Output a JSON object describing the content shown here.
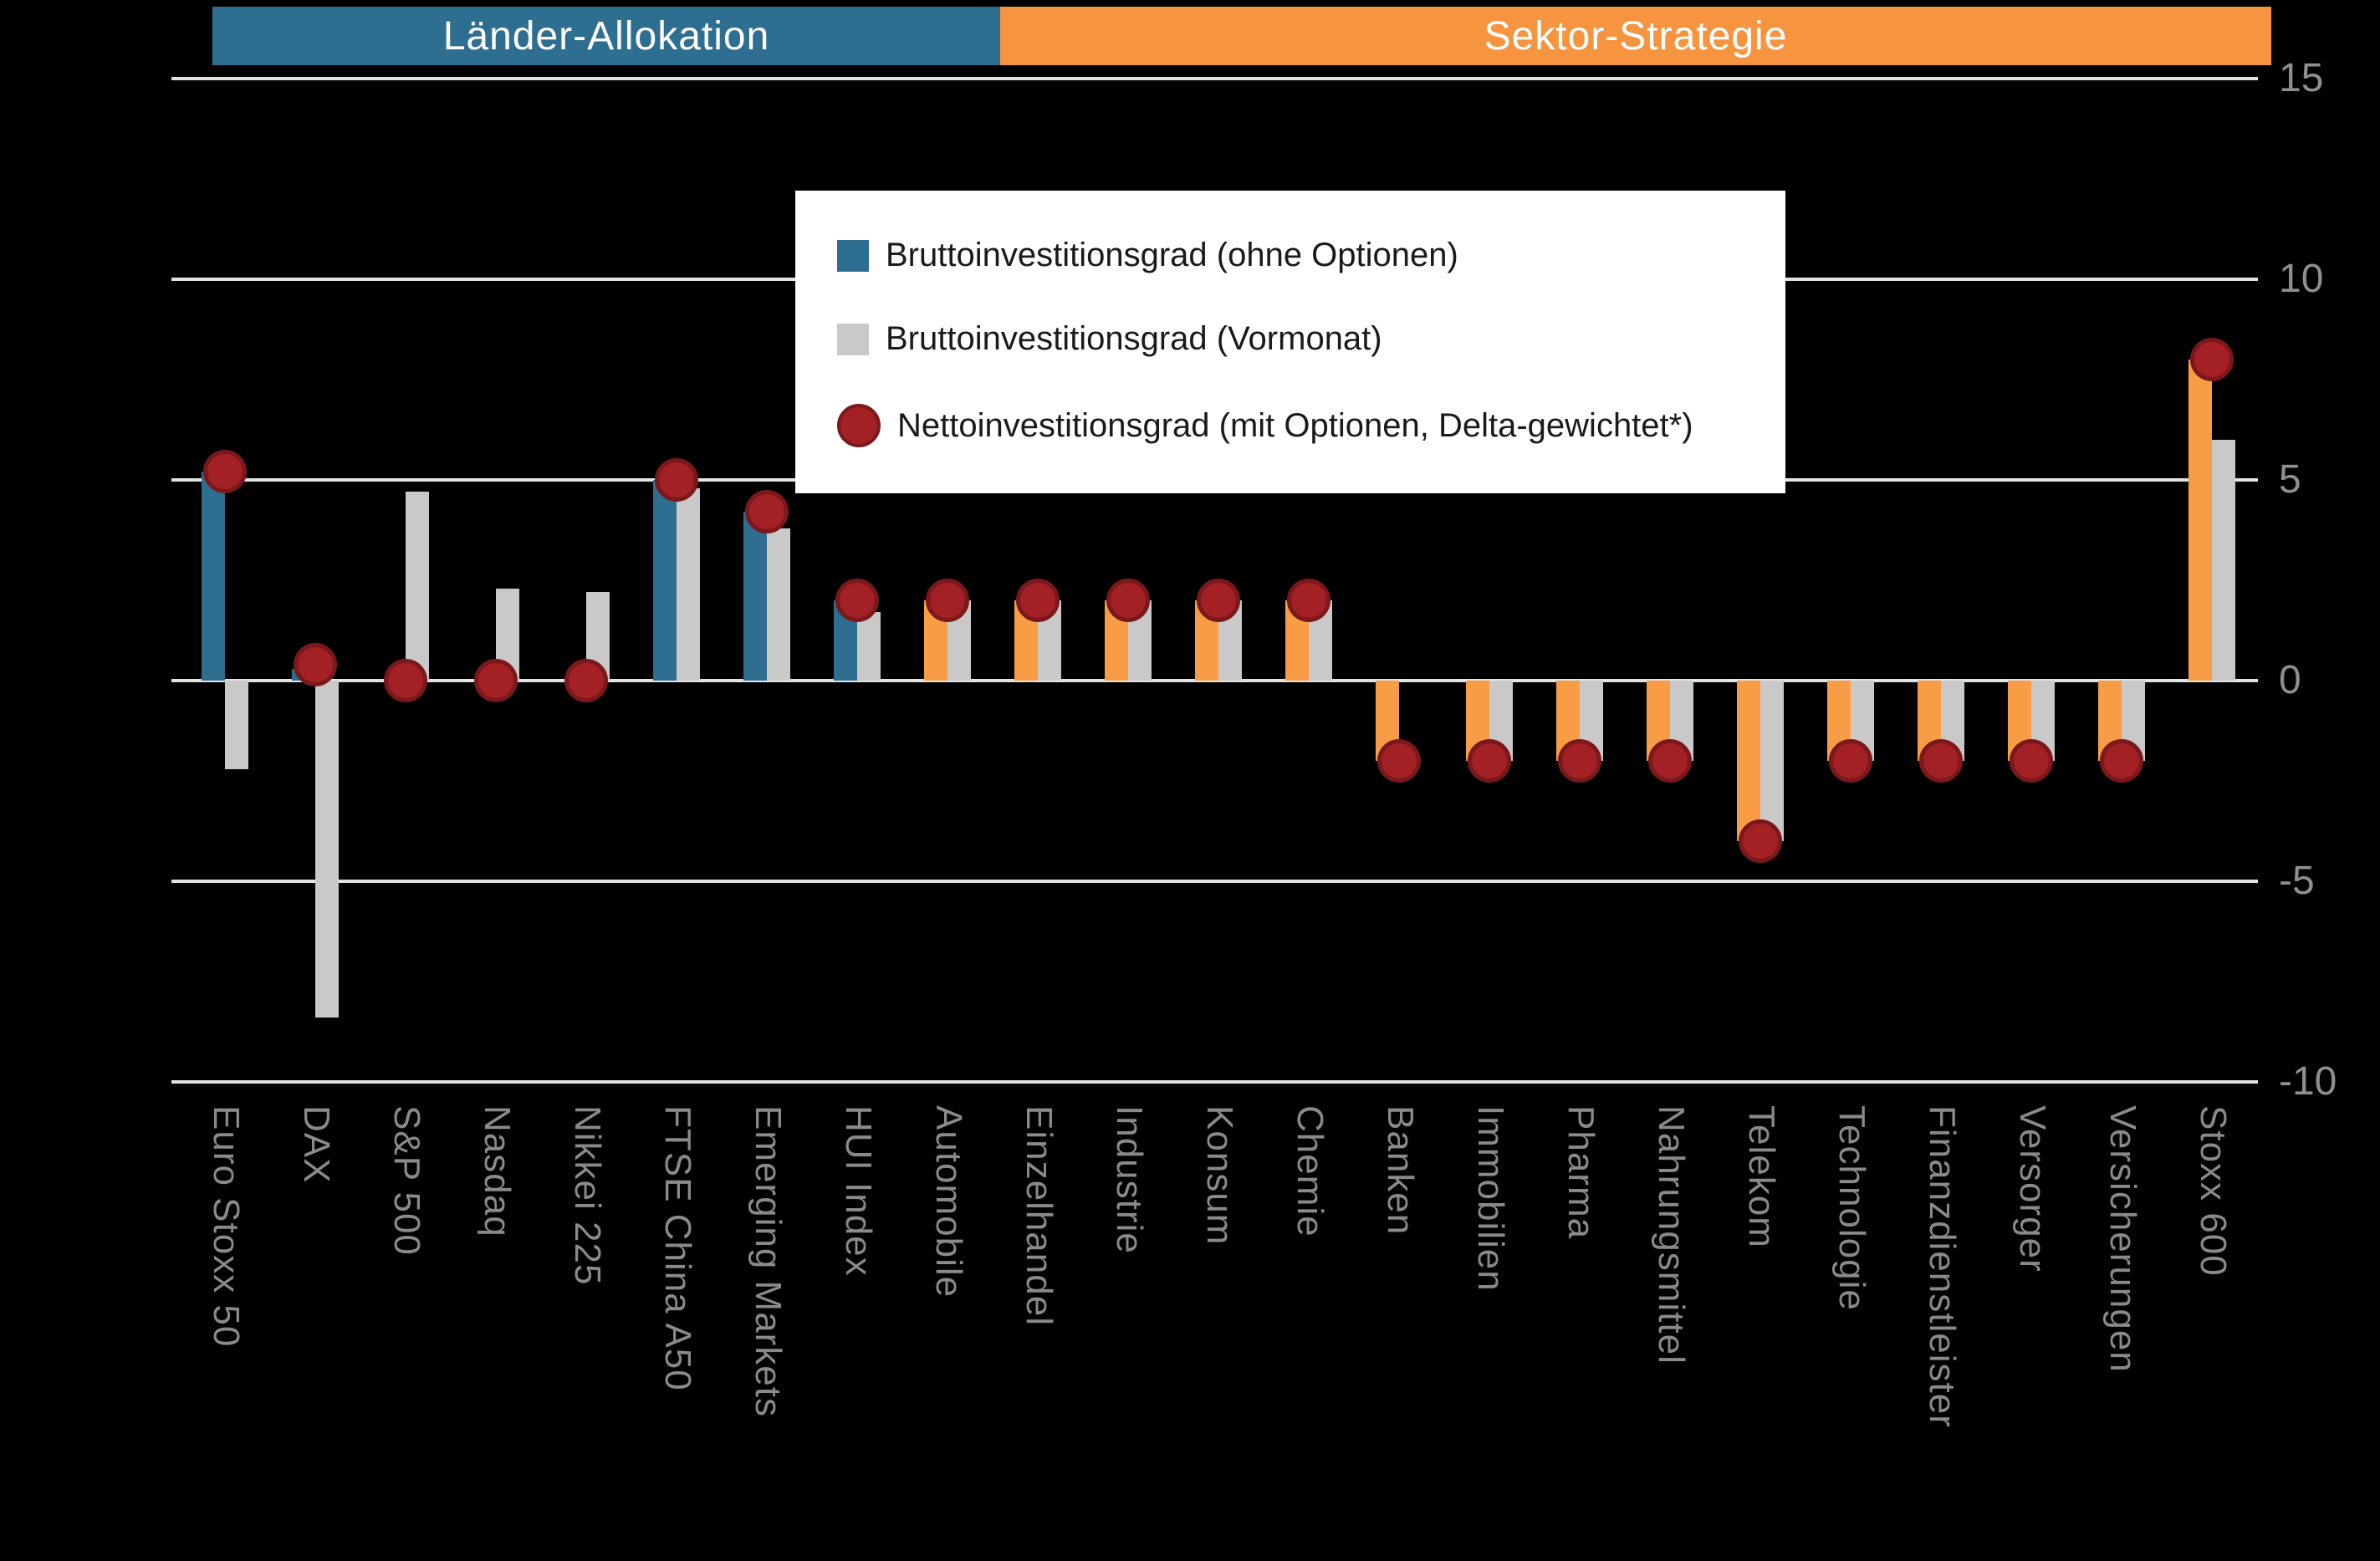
{
  "header": {
    "left_band": "Länder-Allokation",
    "right_band": "Sektor-Strategie"
  },
  "legend": [
    {
      "label": "Bruttoinvestitionsgrad (ohne Optionen)",
      "marker": "square",
      "color": "#2E6E91"
    },
    {
      "label": "Bruttoinvestitionsgrad (Vormonat)",
      "marker": "square",
      "color": "#C9C9C9"
    },
    {
      "label": "Nettoinvestitionsgrad (mit Optionen, Delta-gewichtet*)",
      "marker": "circle",
      "color": "#A32025"
    }
  ],
  "chart_data": {
    "type": "bar",
    "title": "",
    "xlabel": "",
    "ylabel": "",
    "ylim": [
      -10,
      15
    ],
    "yticks": [
      15,
      10,
      5,
      0,
      -5,
      -10
    ],
    "grid": true,
    "legend_position": "top-center",
    "categories": [
      "Euro Stoxx 50",
      "DAX",
      "S&P 500",
      "Nasdaq",
      "Nikkei 225",
      "FTSE China A50",
      "Emerging Markets",
      "HUI Index",
      "Automobile",
      "Einzelhandel",
      "Industrie",
      "Konsum",
      "Chemie",
      "Banken",
      "Immobilien",
      "Pharma",
      "Nahrungsmittel",
      "Telekom",
      "Technologie",
      "Finanzdienstleister",
      "Versorger",
      "Versicherungen",
      "Stoxx 600"
    ],
    "sections": [
      {
        "label": "Länder-Allokation",
        "from": 0,
        "to": 7
      },
      {
        "label": "Sektor-Strategie",
        "from": 8,
        "to": 22
      }
    ],
    "series": [
      {
        "name": "Bruttoinvestitionsgrad (ohne Optionen)",
        "type": "bar",
        "note": "colored blue in Länder section, orange in Sektor section",
        "values": [
          5.2,
          0.3,
          0,
          0,
          0,
          5.0,
          4.2,
          2.0,
          2.0,
          2.0,
          2.0,
          2.0,
          2.0,
          -2.0,
          -2.0,
          -2.0,
          -2.0,
          -4.0,
          -2.0,
          -2.0,
          -2.0,
          -2.0,
          8.0
        ]
      },
      {
        "name": "Bruttoinvestitionsgrad (Vormonat)",
        "type": "bar",
        "values": [
          -2.2,
          -8.4,
          4.7,
          2.3,
          2.2,
          4.8,
          3.8,
          1.7,
          2.0,
          2.0,
          2.0,
          2.0,
          2.0,
          0,
          -2.0,
          -2.0,
          -2.0,
          -4.0,
          -2.0,
          -2.0,
          -2.0,
          -2.0,
          6.0
        ]
      },
      {
        "name": "Nettoinvestitionsgrad (mit Optionen, Delta-gewichtet*)",
        "type": "scatter",
        "values": [
          5.2,
          0.4,
          0,
          0,
          0,
          5.0,
          4.2,
          2.0,
          2.0,
          2.0,
          2.0,
          2.0,
          2.0,
          -2.0,
          -2.0,
          -2.0,
          -2.0,
          -4.0,
          -2.0,
          -2.0,
          -2.0,
          -2.0,
          8.0
        ]
      }
    ]
  },
  "colors": {
    "background": "#000000",
    "band_blue": "#2E6E91",
    "band_orange": "#F79440",
    "bar_blue": "#2E6E91",
    "bar_orange": "#F89C45",
    "bar_gray": "#C9C9C9",
    "dot_fill": "#A32025",
    "dot_border": "#7B181C",
    "gridline": "#E3E3E3",
    "axis_label": "#8F8F8F",
    "x_label": "#8A8A8A",
    "legend_text": "#1A1A1A"
  }
}
